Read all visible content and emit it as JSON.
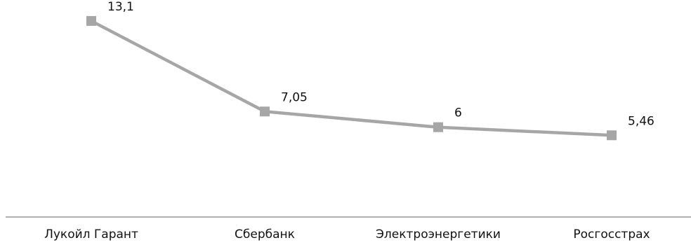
{
  "chart_data": {
    "type": "line",
    "categories": [
      "Лукойл Гарант",
      "Сбербанк",
      "Электроэнергетики",
      "Росгосстрах"
    ],
    "series": [
      {
        "values": [
          13.1,
          7.05,
          6,
          5.46
        ],
        "labels": [
          "13,1",
          "7,05",
          "6",
          "5,46"
        ],
        "color": "#a6a6a6"
      }
    ],
    "ylim": [
      0,
      14.5
    ],
    "grid": false,
    "legend": "none",
    "axis_color": "#7f7f7f"
  }
}
